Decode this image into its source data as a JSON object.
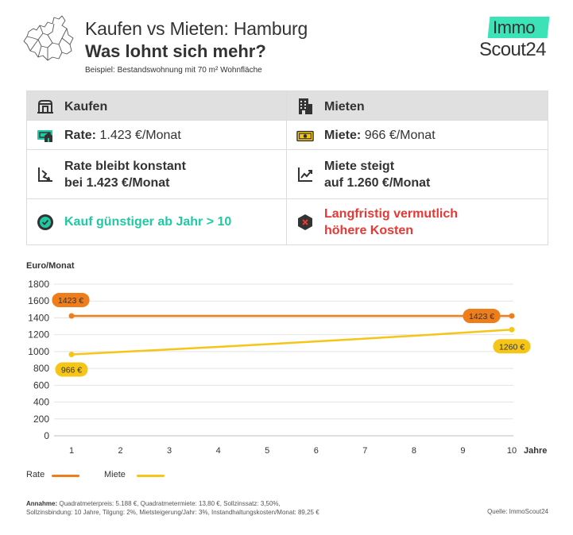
{
  "header": {
    "title_line1": "Kaufen vs Mieten: Hamburg",
    "title_line2": "Was lohnt sich mehr?",
    "subtitle": "Beispiel: Bestandswohnung mit 70 m² Wohnfläche"
  },
  "logo": {
    "immo": "Immo",
    "scout": "Scout24",
    "accent_color": "#3ce3b7"
  },
  "comparison": {
    "kaufen": {
      "header": "Kaufen",
      "rate_label": "Rate:",
      "rate_value": "1.423 €/Monat",
      "trend_line1": "Rate bleibt konstant",
      "trend_line2": "bei 1.423 €/Monat",
      "verdict": "Kauf günstiger ab Jahr > 10"
    },
    "mieten": {
      "header": "Mieten",
      "rent_label": "Miete:",
      "rent_value": "966 €/Monat",
      "trend_line1": "Miete steigt",
      "trend_line2": "auf 1.260 €/Monat",
      "verdict_line1": "Langfristig vermutlich",
      "verdict_line2": "höhere Kosten"
    },
    "icons": [
      "house-icon",
      "building-icon",
      "money-house-icon",
      "banknote-icon",
      "trend-flat-icon",
      "trend-up-icon",
      "check-circle-icon",
      "x-circle-icon"
    ],
    "colors": {
      "green": "#1fc9a4",
      "red": "#e53935",
      "header_bg": "#e0e0e0"
    }
  },
  "chart_data": {
    "type": "line",
    "ylabel": "Euro/Monat",
    "xlabel": "Jahre",
    "x": [
      1,
      2,
      3,
      4,
      5,
      6,
      7,
      8,
      9,
      10
    ],
    "xlim": [
      1,
      10
    ],
    "ylim": [
      0,
      1800
    ],
    "yticks": [
      0,
      200,
      400,
      600,
      800,
      1000,
      1200,
      1400,
      1600,
      1800
    ],
    "grid": true,
    "series": [
      {
        "name": "Rate",
        "color": "#ee7d1a",
        "values": [
          1423,
          1423,
          1423,
          1423,
          1423,
          1423,
          1423,
          1423,
          1423,
          1423
        ],
        "start_label": "1423 €",
        "end_label": "1423 €"
      },
      {
        "name": "Miete",
        "color": "#f5c518",
        "values": [
          966,
          995,
          1025,
          1056,
          1087,
          1120,
          1153,
          1188,
          1224,
          1260
        ],
        "start_label": "966 €",
        "end_label": "1260 €"
      }
    ],
    "legend": [
      "Rate",
      "Miete"
    ]
  },
  "footer": {
    "assumption_label": "Annahme:",
    "assumption_line1": "Quadratmeterpreis: 5.188 €, Quadratmetermiete: 13,80 €,  Sollzinssatz: 3,50%,",
    "assumption_line2": "Sollzinsbindung: 10 Jahre, Tilgung: 2%, Mietsteigerung/Jahr: 3%, Instandhaltungskosten/Monat: 89,25 €",
    "source": "Quelle: ImmoScout24"
  }
}
